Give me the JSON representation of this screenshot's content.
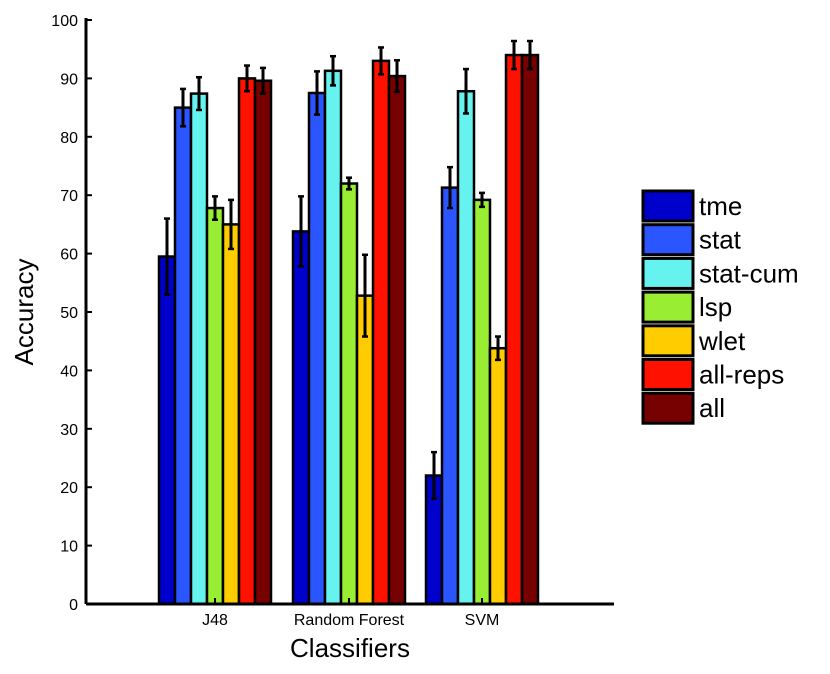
{
  "chart_data": {
    "type": "bar",
    "title": "",
    "xlabel": "Classifiers",
    "ylabel": "Accuracy",
    "ylim": [
      0,
      100
    ],
    "yticks": [
      0,
      10,
      20,
      30,
      40,
      50,
      60,
      70,
      80,
      90,
      100
    ],
    "categories": [
      "J48",
      "Random Forest",
      "SVM"
    ],
    "legend_position": "right",
    "series": [
      {
        "name": "tme",
        "color": "#0000cc",
        "values": [
          59.5,
          63.8,
          22.0
        ],
        "errors": [
          6.5,
          6.0,
          4.0
        ]
      },
      {
        "name": "stat",
        "color": "#2b55ff",
        "values": [
          85.0,
          87.5,
          71.3
        ],
        "errors": [
          3.2,
          3.7,
          3.5
        ]
      },
      {
        "name": "stat-cum",
        "color": "#66f2ee",
        "values": [
          87.4,
          91.3,
          87.8
        ],
        "errors": [
          2.8,
          2.5,
          3.8
        ]
      },
      {
        "name": "lsp",
        "color": "#99ee33",
        "values": [
          67.8,
          72.0,
          69.2
        ],
        "errors": [
          2.0,
          1.0,
          1.2
        ]
      },
      {
        "name": "wlet",
        "color": "#ffcc00",
        "values": [
          65.0,
          52.8,
          43.8
        ],
        "errors": [
          4.2,
          7.0,
          2.0
        ]
      },
      {
        "name": "all-reps",
        "color": "#ff1100",
        "values": [
          90.0,
          93.0,
          94.0
        ],
        "errors": [
          2.2,
          2.3,
          2.4
        ]
      },
      {
        "name": "all",
        "color": "#770000",
        "values": [
          89.6,
          90.4,
          94.0
        ],
        "errors": [
          2.2,
          2.7,
          2.4
        ]
      }
    ]
  }
}
